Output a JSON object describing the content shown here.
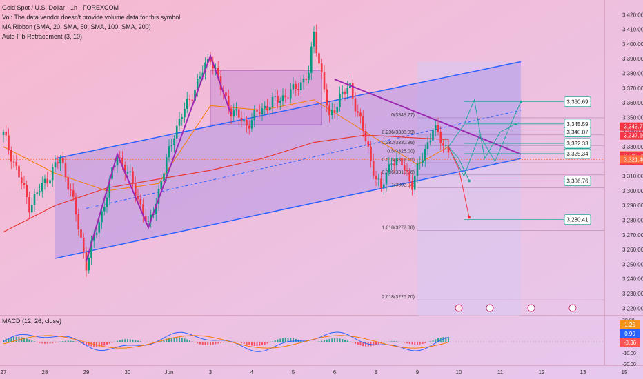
{
  "legend": {
    "symbol": "Gold Spot / U.S. Dollar · 1h · FOREXCOM",
    "volume_note": "Vol: The data vendor doesn't provide volume data for this symbol.",
    "ma_ribbon": "MA Ribbon (SMA, 20, SMA, 50, SMA, 100, SMA, 200)",
    "fib": "Auto Fib Retracement (3, 10)"
  },
  "macd": {
    "label": "MACD (12, 26, close)",
    "axis_ticks": [
      "20.00",
      "10.00",
      "0.00",
      "-10.00",
      "-20.00"
    ],
    "badges": [
      {
        "value": "1.25",
        "color": "#f7931a"
      },
      {
        "value": "0.90",
        "color": "#2962ff"
      },
      {
        "value": "-0.36",
        "color": "#ff5252"
      }
    ]
  },
  "colors": {
    "up": "#089981",
    "down": "#f23645",
    "channel": "#2962ff",
    "sma20": "#f57c00",
    "sma200": "#e53935",
    "projection": "#26a69a",
    "trendline": "#9c27b0"
  },
  "chart_data": {
    "type": "candlestick",
    "ylim": [
      3215,
      3430
    ],
    "y_ticks": [
      "3,420.00",
      "3,410.00",
      "3,400.00",
      "3,390.00",
      "3,380.00",
      "3,370.00",
      "3,360.00",
      "3,350.00",
      "3,340.00",
      "3,330.00",
      "3,320.00",
      "3,310.00",
      "3,300.00",
      "3,290.00",
      "3,280.00",
      "3,270.00",
      "3,260.00",
      "3,250.00",
      "3,240.00",
      "3,230.00",
      "3,220.00"
    ],
    "x_ticks": [
      {
        "label": "27",
        "bar": 0
      },
      {
        "label": "28",
        "bar": 16
      },
      {
        "label": "29",
        "bar": 32
      },
      {
        "label": "30",
        "bar": 48
      },
      {
        "label": "Jun",
        "bar": 64
      },
      {
        "label": "3",
        "bar": 80
      },
      {
        "label": "4",
        "bar": 96
      },
      {
        "label": "5",
        "bar": 112
      },
      {
        "label": "6",
        "bar": 128
      },
      {
        "label": "8",
        "bar": 144
      },
      {
        "label": "9",
        "bar": 160
      },
      {
        "label": "10",
        "bar": 176
      },
      {
        "label": "11",
        "bar": 192
      },
      {
        "label": "12",
        "bar": 208
      },
      {
        "label": "13",
        "bar": 224
      },
      {
        "label": "15",
        "bar": 240
      }
    ],
    "price_path": [
      [
        0,
        3338
      ],
      [
        4,
        3320
      ],
      [
        10,
        3290
      ],
      [
        16,
        3306
      ],
      [
        22,
        3322
      ],
      [
        26,
        3300
      ],
      [
        32,
        3250
      ],
      [
        38,
        3285
      ],
      [
        44,
        3325
      ],
      [
        50,
        3305
      ],
      [
        56,
        3275
      ],
      [
        60,
        3300
      ],
      [
        66,
        3340
      ],
      [
        74,
        3370
      ],
      [
        80,
        3392
      ],
      [
        84,
        3370
      ],
      [
        88,
        3355
      ],
      [
        94,
        3345
      ],
      [
        100,
        3356
      ],
      [
        106,
        3362
      ],
      [
        112,
        3368
      ],
      [
        118,
        3380
      ],
      [
        120,
        3407
      ],
      [
        124,
        3370
      ],
      [
        126,
        3348
      ],
      [
        130,
        3365
      ],
      [
        134,
        3370
      ],
      [
        138,
        3348
      ],
      [
        142,
        3320
      ],
      [
        146,
        3300
      ],
      [
        150,
        3322
      ],
      [
        154,
        3318
      ],
      [
        158,
        3305
      ],
      [
        162,
        3323
      ],
      [
        166,
        3343
      ],
      [
        170,
        3332
      ],
      [
        172,
        3328
      ]
    ],
    "sma_fast": [
      [
        0,
        3330
      ],
      [
        20,
        3312
      ],
      [
        40,
        3300
      ],
      [
        60,
        3305
      ],
      [
        80,
        3358
      ],
      [
        100,
        3355
      ],
      [
        120,
        3362
      ],
      [
        140,
        3340
      ],
      [
        160,
        3318
      ],
      [
        172,
        3330
      ]
    ],
    "sma_slow": [
      [
        0,
        3272
      ],
      [
        20,
        3290
      ],
      [
        40,
        3302
      ],
      [
        60,
        3308
      ],
      [
        80,
        3314
      ],
      [
        100,
        3322
      ],
      [
        120,
        3333
      ],
      [
        140,
        3338
      ],
      [
        160,
        3336
      ],
      [
        172,
        3335
      ]
    ],
    "channel": {
      "upper": [
        [
          20,
          3322
        ],
        [
          200,
          3388
        ]
      ],
      "lower": [
        [
          20,
          3254
        ],
        [
          200,
          3322
        ]
      ],
      "mid": [
        [
          32,
          3288
        ],
        [
          200,
          3355
        ]
      ]
    },
    "rect_zone": {
      "x": [
        80,
        123
      ],
      "y": [
        3345,
        3382
      ]
    },
    "projection_zone": {
      "x": [
        160,
        200
      ],
      "y": [
        3215,
        3388
      ]
    },
    "descending_line": [
      [
        128,
        3376
      ],
      [
        200,
        3325
      ]
    ],
    "zigzag": [
      [
        32,
        3252
      ],
      [
        44,
        3325
      ],
      [
        56,
        3275
      ],
      [
        80,
        3392
      ],
      [
        88,
        3352
      ]
    ],
    "projection_paths": [
      [
        [
          172,
          3330
        ],
        [
          178,
          3310
        ],
        [
          184,
          3338
        ],
        [
          190,
          3320
        ],
        [
          196,
          3345
        ],
        [
          200,
          3360.69
        ]
      ],
      [
        [
          172,
          3330
        ],
        [
          178,
          3345
        ],
        [
          182,
          3362
        ],
        [
          186,
          3322
        ],
        [
          192,
          3340
        ],
        [
          198,
          3345.59
        ]
      ],
      [
        [
          172,
          3330
        ],
        [
          176,
          3322
        ],
        [
          180,
          3306.76
        ]
      ],
      [
        [
          172,
          3330
        ],
        [
          176,
          3315
        ],
        [
          180,
          3282
        ]
      ]
    ],
    "fib_levels": [
      {
        "label": "0(3349.77)",
        "value": 3349.77,
        "text": "0(3349.77)"
      },
      {
        "label": "0.236(3338.09)",
        "value": 3338.09,
        "text": "0.236(3338.09)"
      },
      {
        "label": "0.382(3330.86)",
        "value": 3330.86,
        "text": "0.382(3330.86)"
      },
      {
        "label": "0.5(3325.00)",
        "value": 3325.0,
        "text": "0.5(3325.00)"
      },
      {
        "label": "0.618(3319.18)",
        "value": 3319.18,
        "text": "0.618(3319.18)"
      },
      {
        "label": "0.786(3310.86)",
        "value": 3310.86,
        "text": "0.786(3310.86)"
      },
      {
        "label": "1(3302.04)",
        "value": 3302.04,
        "text": "1(3302.04)"
      },
      {
        "label": "1.618(3272.88)",
        "value": 3272.88,
        "text": "1.618(3272.88)"
      },
      {
        "label": "2.618(3225.70)",
        "value": 3225.7,
        "text": "2.618(3225.70)"
      }
    ],
    "target_labels": [
      {
        "value": 3360.69,
        "text": "3,360.69",
        "color": "#26a69a"
      },
      {
        "value": 3345.59,
        "text": "3,345.59",
        "color": "#26a69a"
      },
      {
        "value": 3340.07,
        "text": "3,340.07",
        "color": "#26a69a"
      },
      {
        "value": 3332.33,
        "text": "3,332.33",
        "color": "#26a69a"
      },
      {
        "value": 3325.34,
        "text": "3,325.34",
        "color": "#26a69a"
      },
      {
        "value": 3306.76,
        "text": "3,306.76",
        "color": "#26a69a"
      },
      {
        "value": 3280.41,
        "text": "3,280.41",
        "color": "#26a69a"
      }
    ],
    "axis_badges": [
      {
        "value": 3343.77,
        "text": "3,343.77",
        "color": "#f23645"
      },
      {
        "value": 3337.66,
        "text": "3,337.66",
        "color": "#f23645"
      },
      {
        "value": 3324.13,
        "text": "3,324.13",
        "color": "#f57c00"
      },
      {
        "value": 3323.85,
        "text": "3,323.85",
        "color": "#f23645"
      },
      {
        "value": 3320.4,
        "text": "17:03",
        "color": "#f23645"
      },
      {
        "value": 3321.4,
        "text": "3,321.40",
        "color": "#ff7043"
      }
    ],
    "event_icons": [
      {
        "bar": 176,
        "icon": "lightning-icon"
      },
      {
        "bar": 188,
        "icon": "us-flag-icon"
      },
      {
        "bar": 204,
        "icon": "us-flag-icon"
      },
      {
        "bar": 220,
        "icon": "us-flag-icon"
      }
    ]
  }
}
